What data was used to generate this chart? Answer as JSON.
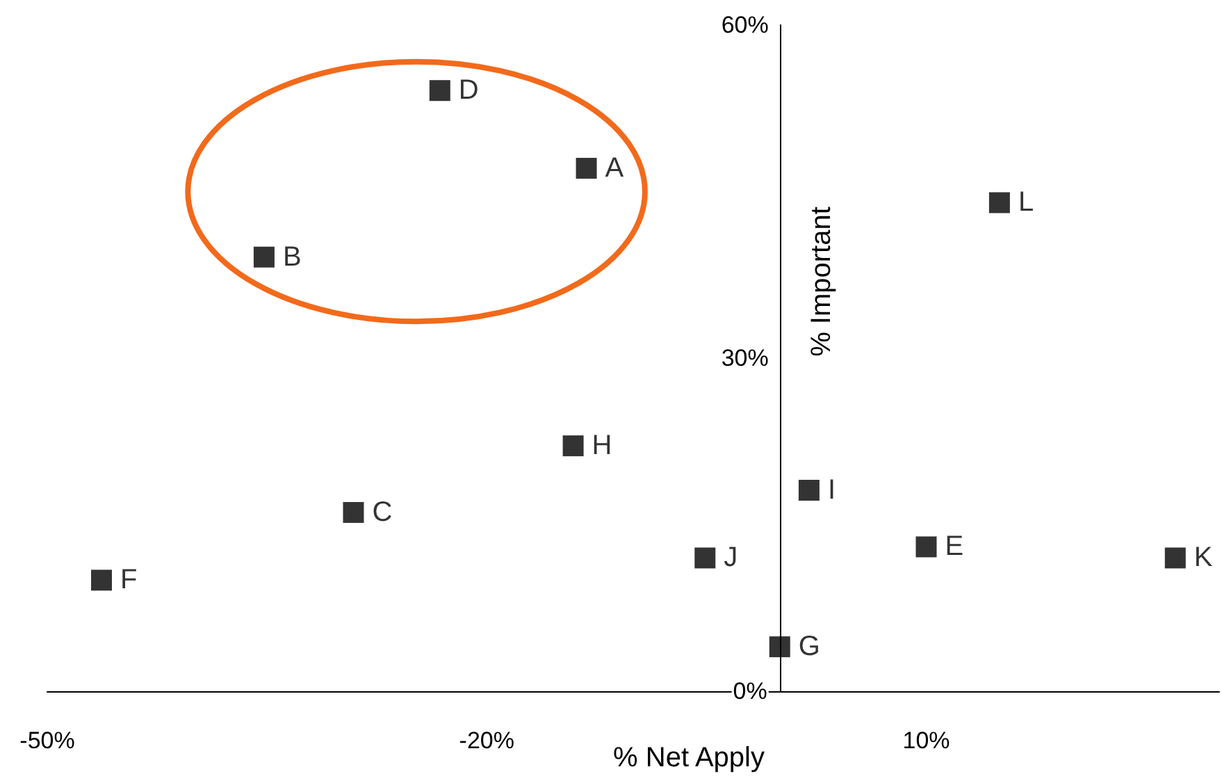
{
  "chart_data": {
    "type": "scatter",
    "xlabel": "% Net Apply",
    "ylabel": "% Important",
    "x": [
      -13.2,
      -35.2,
      -29.1,
      -23.2,
      10.0,
      -46.3,
      0.0,
      -14.1,
      2.0,
      -5.1,
      27.0,
      15.0
    ],
    "values": [
      47.1,
      39.1,
      16.1,
      54.1,
      13.0,
      10.0,
      4.0,
      22.1,
      18.1,
      12.0,
      12.0,
      44.0
    ],
    "color": "#000000",
    "marker": "square",
    "grid": false,
    "xlim": [
      -50,
      30
    ],
    "xticks": [
      {
        "value": -50,
        "label": "-50%"
      },
      {
        "value": -20,
        "label": "-20%"
      },
      {
        "value": 10,
        "label": "10%"
      }
    ],
    "ylim": [
      0,
      60
    ],
    "yticks": [
      {
        "value": 0,
        "label": "0%"
      },
      {
        "value": 30,
        "label": "30%"
      },
      {
        "value": 60,
        "label": "60%"
      }
    ],
    "annotations": [
      {
        "text": "A",
        "x": -13.2,
        "y": 47.1
      },
      {
        "text": "B",
        "x": -35.2,
        "y": 39.1
      },
      {
        "text": "C",
        "x": -29.1,
        "y": 16.1
      },
      {
        "text": "D",
        "x": -23.2,
        "y": 54.1
      },
      {
        "text": "E",
        "x": 10.0,
        "y": 13.0
      },
      {
        "text": "F",
        "x": -46.3,
        "y": 10.0
      },
      {
        "text": "G",
        "x": 0.0,
        "y": 4.0
      },
      {
        "text": "H",
        "x": -14.1,
        "y": 22.1
      },
      {
        "text": "I",
        "x": 2.0,
        "y": 18.1
      },
      {
        "text": "J",
        "x": -5.1,
        "y": 12.0
      },
      {
        "text": "K",
        "x": 27.0,
        "y": 12.0
      },
      {
        "text": "L",
        "x": 15.0,
        "y": 44.0
      }
    ]
  }
}
